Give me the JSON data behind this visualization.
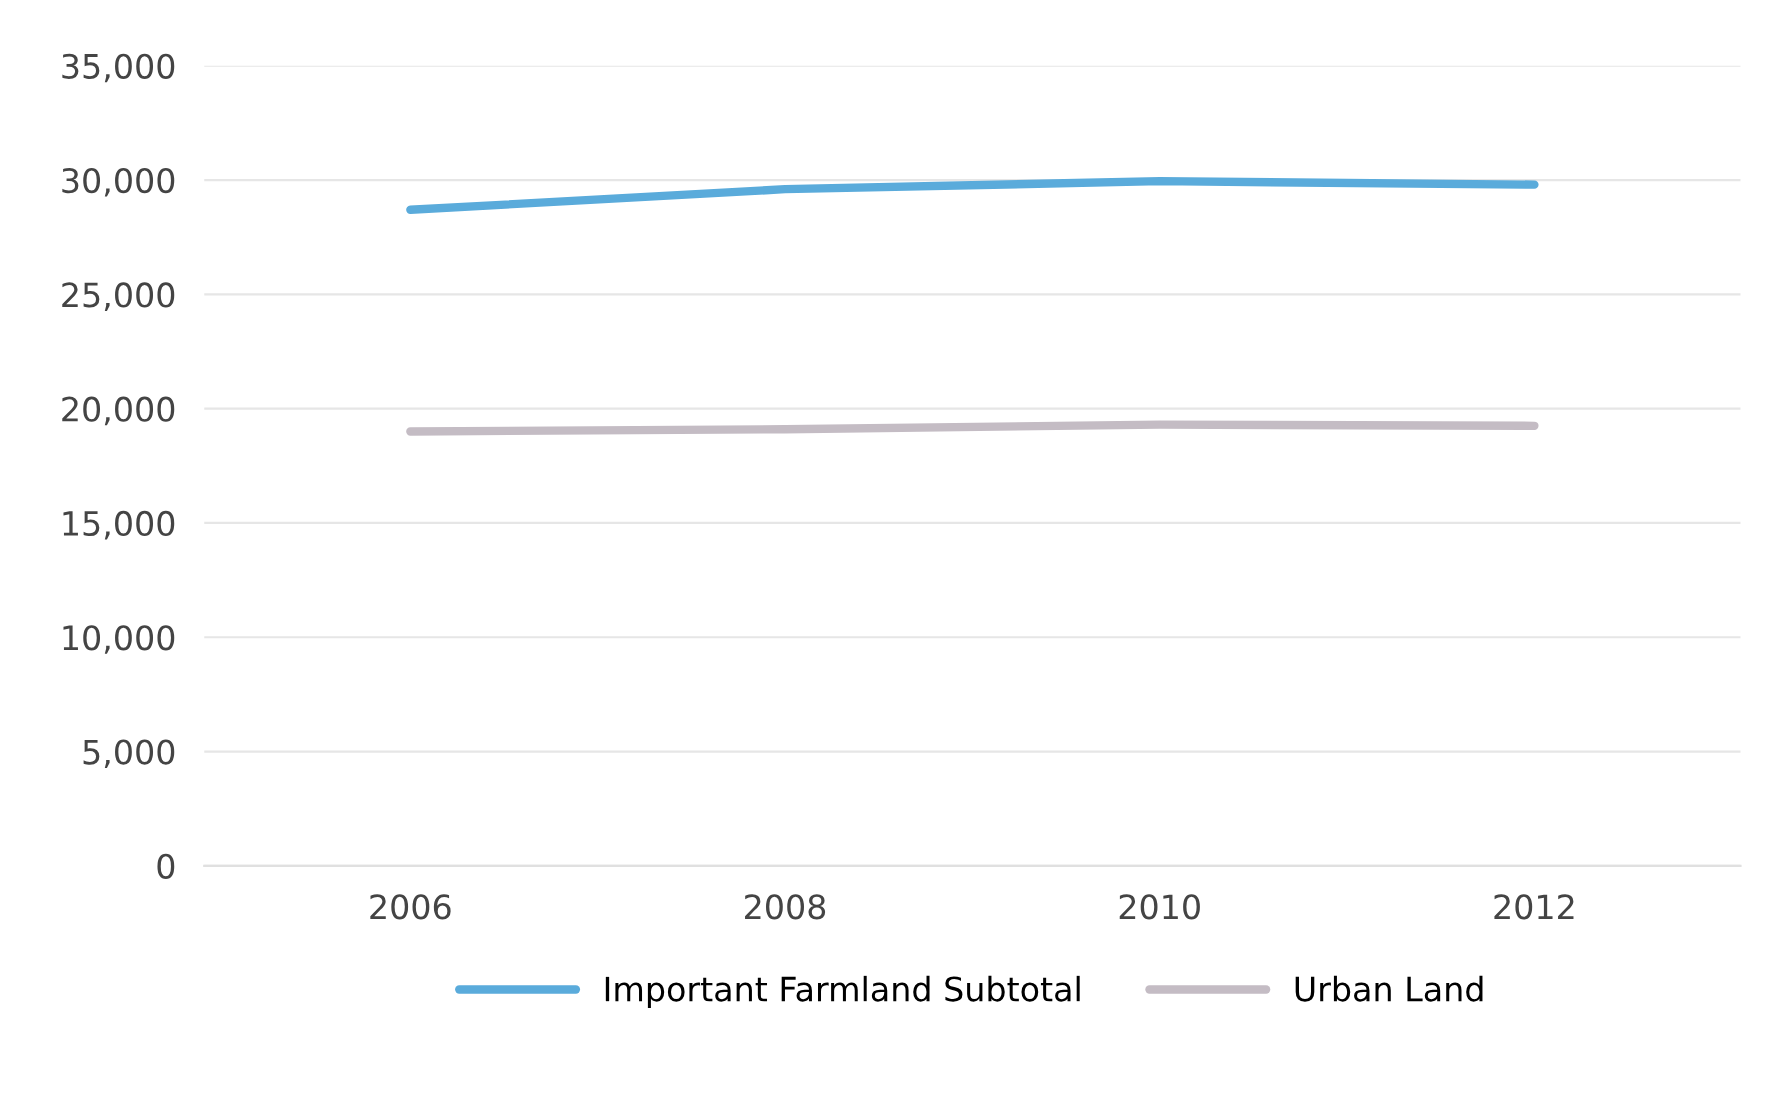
{
  "chart_data": {
    "type": "line",
    "categories": [
      "2006",
      "2008",
      "2010",
      "2012"
    ],
    "series": [
      {
        "name": "Important Farmland Subtotal",
        "color": "#5aabdb",
        "values": [
          28700,
          29600,
          29950,
          29800
        ]
      },
      {
        "name": "Urban Land",
        "color": "#c4bcc4",
        "values": [
          19000,
          19100,
          19300,
          19250
        ]
      }
    ],
    "ylim": [
      0,
      35000
    ],
    "yticks": [
      {
        "value": 0,
        "label": "0"
      },
      {
        "value": 5000,
        "label": "5,000"
      },
      {
        "value": 10000,
        "label": "10,000"
      },
      {
        "value": 15000,
        "label": "15,000"
      },
      {
        "value": 20000,
        "label": "20,000"
      },
      {
        "value": 25000,
        "label": "25,000"
      },
      {
        "value": 30000,
        "label": "30,000"
      },
      {
        "value": 35000,
        "label": "35,000"
      }
    ],
    "grid": "y",
    "legend": "bottom",
    "marker": "none",
    "line_style": "solid"
  }
}
